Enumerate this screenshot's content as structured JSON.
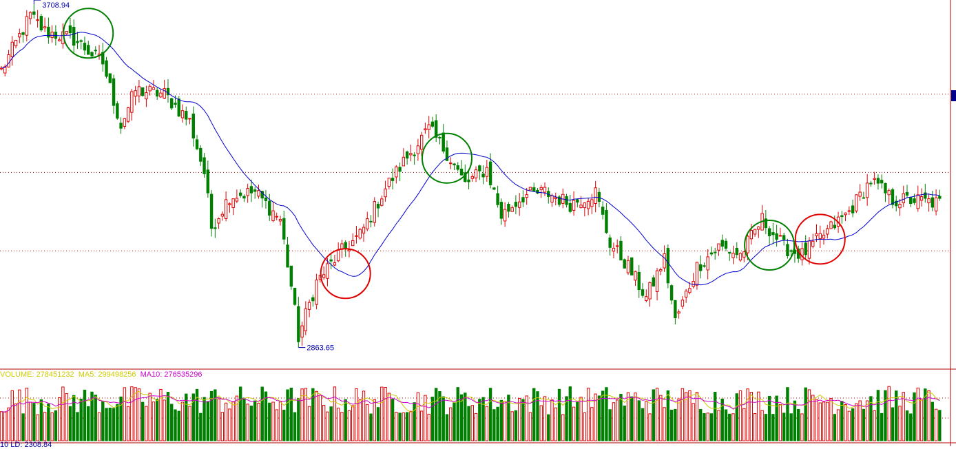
{
  "chart_data": [
    {
      "type": "candlestick",
      "title": "",
      "ma_line_color": "#0000cc",
      "up_color": "#e00000",
      "down_color": "#008000",
      "ylim": [
        2800,
        3740
      ],
      "high_label": "3708.94",
      "low_label": "2863.65",
      "grid": "dotted-horizontal",
      "circles": [
        {
          "color": "#008000",
          "index": 24
        },
        {
          "color": "#e00000",
          "index": 95
        },
        {
          "color": "#008000",
          "index": 123
        },
        {
          "color": "#008000",
          "index": 212
        },
        {
          "color": "#e00000",
          "index": 226
        }
      ],
      "anchors": [
        {
          "i": 0,
          "c": 3560
        },
        {
          "i": 8,
          "c": 3700
        },
        {
          "i": 12,
          "c": 3660
        },
        {
          "i": 20,
          "c": 3640
        },
        {
          "i": 28,
          "c": 3580
        },
        {
          "i": 33,
          "c": 3420
        },
        {
          "i": 37,
          "c": 3510
        },
        {
          "i": 45,
          "c": 3500
        },
        {
          "i": 52,
          "c": 3430
        },
        {
          "i": 56,
          "c": 3300
        },
        {
          "i": 58,
          "c": 3160
        },
        {
          "i": 63,
          "c": 3240
        },
        {
          "i": 70,
          "c": 3250
        },
        {
          "i": 77,
          "c": 3180
        },
        {
          "i": 80,
          "c": 3010
        },
        {
          "i": 82,
          "c": 2880
        },
        {
          "i": 87,
          "c": 3020
        },
        {
          "i": 93,
          "c": 3090
        },
        {
          "i": 99,
          "c": 3140
        },
        {
          "i": 106,
          "c": 3260
        },
        {
          "i": 112,
          "c": 3340
        },
        {
          "i": 118,
          "c": 3410
        },
        {
          "i": 123,
          "c": 3350
        },
        {
          "i": 128,
          "c": 3270
        },
        {
          "i": 134,
          "c": 3310
        },
        {
          "i": 138,
          "c": 3190
        },
        {
          "i": 144,
          "c": 3240
        },
        {
          "i": 150,
          "c": 3250
        },
        {
          "i": 157,
          "c": 3220
        },
        {
          "i": 164,
          "c": 3250
        },
        {
          "i": 168,
          "c": 3120
        },
        {
          "i": 173,
          "c": 3060
        },
        {
          "i": 178,
          "c": 2980
        },
        {
          "i": 183,
          "c": 3080
        },
        {
          "i": 186,
          "c": 2920
        },
        {
          "i": 192,
          "c": 3060
        },
        {
          "i": 198,
          "c": 3110
        },
        {
          "i": 204,
          "c": 3090
        },
        {
          "i": 210,
          "c": 3180
        },
        {
          "i": 216,
          "c": 3110
        },
        {
          "i": 221,
          "c": 3090
        },
        {
          "i": 228,
          "c": 3150
        },
        {
          "i": 234,
          "c": 3200
        },
        {
          "i": 240,
          "c": 3280
        },
        {
          "i": 246,
          "c": 3230
        },
        {
          "i": 252,
          "c": 3230
        }
      ]
    },
    {
      "type": "bar",
      "title": "",
      "up_color": "#e00000",
      "down_color": "#008000",
      "ma5_color": "#cccc00",
      "ma10_color": "#cc00cc",
      "volume_label": "VOLUME: 278451232",
      "ma5_label": "MA5: 299498256",
      "ma10_label": "MA10: 276535296"
    }
  ],
  "bottom_strip": {
    "text": "10 LD: 2308.84"
  }
}
